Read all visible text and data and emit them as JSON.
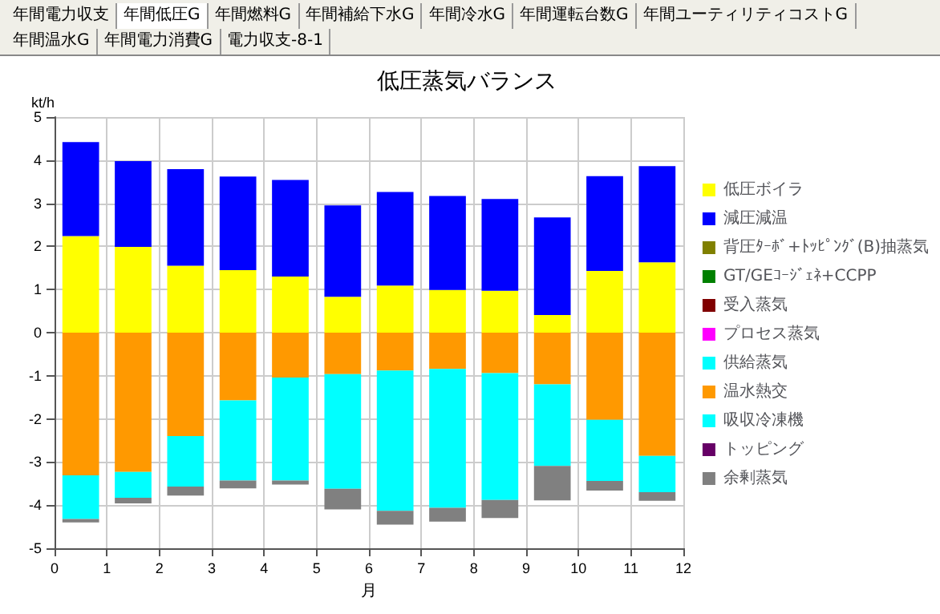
{
  "chart_data": {
    "type": "bar",
    "title": "低圧蒸気バランス",
    "ylabel": "kt/h",
    "xlabel": "月",
    "stacked": true,
    "annotations": [
      "年間電力収支",
      "年間低圧G",
      "年間燃料G",
      "年間補給下水G",
      "年間冷水G",
      "年間運転台数G",
      "年間ユーティリティコストG",
      "年間温水G",
      "年間電力消費G",
      "電力収支-8-1"
    ],
    "x": [
      0.5,
      1.5,
      2.5,
      3.5,
      4.5,
      5.5,
      6.5,
      7.5,
      8.5,
      9.5,
      10.5,
      11.5
    ],
    "xlim": [
      0,
      12
    ],
    "xticks": [
      0,
      1,
      2,
      3,
      4,
      5,
      6,
      7,
      8,
      9,
      10,
      11,
      12
    ],
    "ylim": [
      -5,
      5
    ],
    "yticks": [
      -5,
      -4,
      -3,
      -2,
      -1,
      0,
      1,
      2,
      3,
      4,
      5
    ],
    "grid": true,
    "legend": "right",
    "series": [
      {
        "name": "低圧ボイラ",
        "color": "#ffff00",
        "values": [
          2.24,
          1.99,
          1.55,
          1.45,
          1.3,
          0.83,
          1.09,
          0.99,
          0.97,
          0.41,
          1.43,
          1.63
        ]
      },
      {
        "name": "減圧減温",
        "color": "#0000ff",
        "values": [
          2.18,
          1.99,
          2.24,
          2.17,
          2.24,
          2.12,
          2.17,
          2.18,
          2.13,
          2.26,
          2.2,
          2.23
        ]
      },
      {
        "name": "背圧ﾀｰﾎﾞ+ﾄｯﾋﾟﾝｸﾞ(B)抽蒸気",
        "color": "#808000",
        "values": [
          0,
          0,
          0,
          0,
          0,
          0,
          0,
          0,
          0,
          0,
          0,
          0
        ]
      },
      {
        "name": "GT/GEｺｰｼﾞｪﾈ+CCPP",
        "color": "#008000",
        "values": [
          0,
          0,
          0,
          0,
          0,
          0,
          0,
          0,
          0,
          0,
          0,
          0
        ]
      },
      {
        "name": "受入蒸気",
        "color": "#800000",
        "values": [
          0,
          0,
          0,
          0,
          0,
          0,
          0,
          0,
          0,
          0,
          0,
          0
        ]
      },
      {
        "name": "プロセス蒸気",
        "color": "#ff00ff",
        "values": [
          0,
          0,
          0,
          0,
          0,
          0,
          0,
          0,
          0,
          0,
          0,
          0
        ]
      },
      {
        "name": "供給蒸気",
        "color": "#00fffe",
        "values": [
          0,
          0,
          0,
          0,
          0,
          0,
          0,
          0,
          0,
          0,
          0,
          0
        ]
      },
      {
        "name": "温水熱交",
        "color": "#ff9900",
        "values": [
          -3.31,
          -3.23,
          -2.4,
          -1.57,
          -1.04,
          -0.96,
          -0.88,
          -0.84,
          -0.94,
          -1.2,
          -2.02,
          -2.86
        ]
      },
      {
        "name": "吸収冷凍機",
        "color": "#00ffff",
        "values": [
          -1.01,
          -0.6,
          -1.17,
          -1.86,
          -2.39,
          -2.66,
          -3.25,
          -3.22,
          -2.94,
          -1.89,
          -1.42,
          -0.84
        ]
      },
      {
        "name": "トッピング",
        "color": "#660066",
        "values": [
          0,
          0,
          0,
          0,
          0,
          0,
          0,
          0,
          0,
          0,
          0,
          0
        ]
      },
      {
        "name": "余剰蒸気",
        "color": "#808080",
        "values": [
          -0.08,
          -0.13,
          -0.21,
          -0.18,
          -0.09,
          -0.48,
          -0.32,
          -0.32,
          -0.42,
          -0.8,
          -0.22,
          -0.2
        ]
      }
    ]
  }
}
